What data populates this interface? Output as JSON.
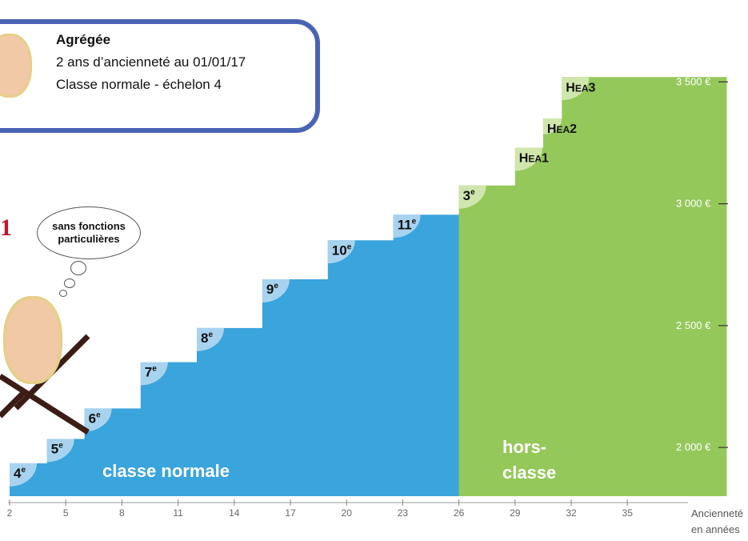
{
  "info_box": {
    "title": "Agrégée",
    "line1": "2 ans d’ancienneté au 01/01/17",
    "line2": "Classe normale - échelon 4"
  },
  "thought_bubble": {
    "line1": "sans fonctions",
    "line2": "particulières"
  },
  "side_mark": "1",
  "colors": {
    "normal": "#3aa4dc",
    "normal_tab": "#a8d3ef",
    "hors": "#95c85a",
    "hors_tab": "#cfe6ad",
    "box_border": "#4a63b4",
    "cross": "#3b1d16"
  },
  "chart_data": {
    "type": "step",
    "x_axis": {
      "ticks": [
        2,
        5,
        8,
        11,
        14,
        17,
        20,
        23,
        26,
        29,
        32,
        35
      ],
      "title_line1": "Ancienneté",
      "title_line2": "en années"
    },
    "y_axis": {
      "ticks": [
        2000,
        2500,
        3000,
        3500
      ],
      "tick_labels": [
        "2 000 €",
        "2 500 €",
        "3 000 €",
        "3 500 €"
      ],
      "range": [
        1800,
        3600
      ]
    },
    "series": [
      {
        "band_label": "classe normale",
        "steps": [
          {
            "label": "4",
            "sup": "e",
            "x_start": 2,
            "x_end": 4,
            "y": 1935
          },
          {
            "label": "5",
            "sup": "e",
            "x_start": 4,
            "x_end": 6,
            "y": 2035
          },
          {
            "label": "6",
            "sup": "e",
            "x_start": 6,
            "x_end": 9,
            "y": 2160
          },
          {
            "label": "7",
            "sup": "e",
            "x_start": 9,
            "x_end": 12,
            "y": 2350
          },
          {
            "label": "8",
            "sup": "e",
            "x_start": 12,
            "x_end": 15.5,
            "y": 2490
          },
          {
            "label": "9",
            "sup": "e",
            "x_start": 15.5,
            "x_end": 19,
            "y": 2690
          },
          {
            "label": "10",
            "sup": "e",
            "x_start": 19,
            "x_end": 22.5,
            "y": 2850
          },
          {
            "label": "11",
            "sup": "e",
            "x_start": 22.5,
            "x_end": 26,
            "y": 2955
          }
        ]
      },
      {
        "band_label_line1": "hors-",
        "band_label_line2": "classe",
        "steps": [
          {
            "label": "3",
            "sup": "e",
            "x_start": 26,
            "x_end": 29,
            "y": 3075
          },
          {
            "label": "HEA1",
            "x_start": 29,
            "x_end": 30.5,
            "y": 3230
          },
          {
            "label": "HEA2",
            "x_start": 30.5,
            "x_end": 31.5,
            "y": 3350
          },
          {
            "label": "HEA3",
            "x_start": 31.5,
            "x_end": 38,
            "y": 3520
          }
        ]
      }
    ]
  }
}
